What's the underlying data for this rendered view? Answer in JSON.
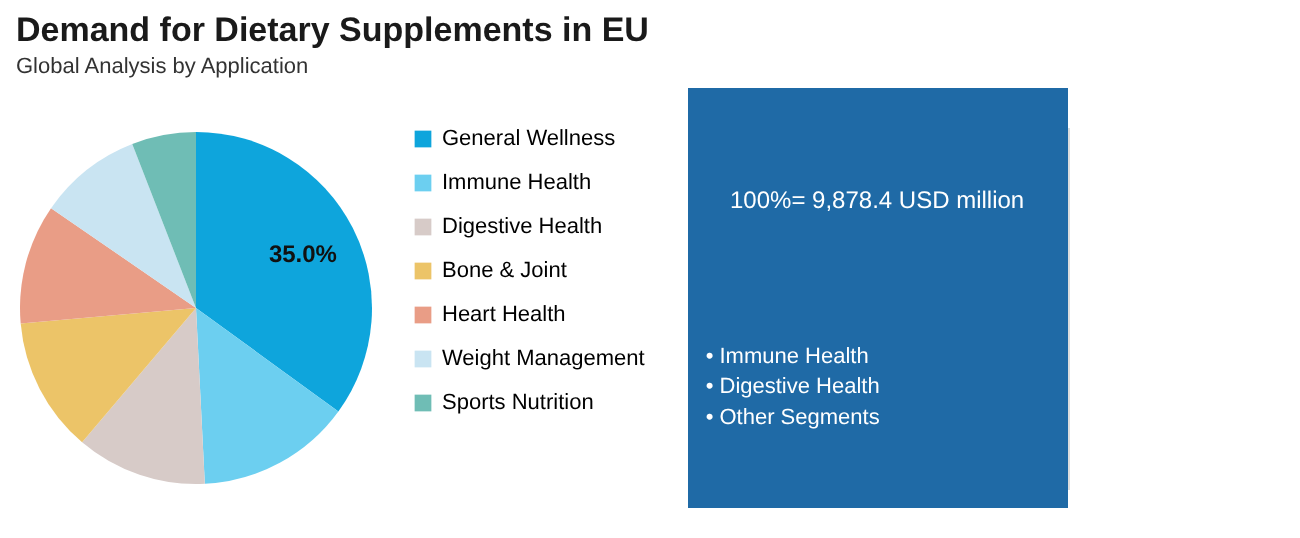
{
  "chart_data": {
    "type": "pie",
    "title": "Demand for Dietary Supplements in EU",
    "subtitle": "Global Analysis by Application",
    "categories": [
      "General Wellness",
      "Immune Health",
      "Digestive Health",
      "Bone & Joint",
      "Heart Health",
      "Weight Management",
      "Sports Nutrition"
    ],
    "values": [
      35.0,
      14.2,
      12.0,
      12.4,
      11.0,
      9.5,
      5.9
    ],
    "colors": [
      "#0ea5dc",
      "#6ccff0",
      "#d7cbc8",
      "#ecc468",
      "#e99d86",
      "#c9e4f2",
      "#6fbdb5"
    ],
    "value_labels": [
      "35.0%",
      null,
      null,
      null,
      null,
      null,
      null
    ],
    "legend": "right",
    "annotations": [
      "100%= 9,878.4 USD million",
      "• Immune Health",
      "• Digestive Health",
      "• Other Segments"
    ]
  }
}
